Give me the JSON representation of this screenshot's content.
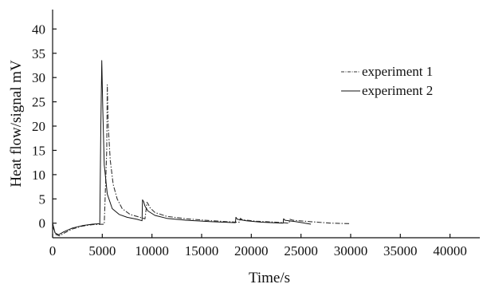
{
  "chart_data": {
    "type": "line",
    "xlabel": "Time/s",
    "ylabel": "Heat flow/signal  mV",
    "xlim": [
      0,
      43000
    ],
    "ylim": [
      -3,
      44
    ],
    "x_ticks": [
      0,
      5000,
      10000,
      15000,
      20000,
      25000,
      30000,
      35000,
      40000
    ],
    "x_tick_labels": [
      "0",
      "5000",
      "10000",
      "15000",
      "20000",
      "25000",
      "30000",
      "35000",
      "40000"
    ],
    "y_ticks": [
      0,
      5,
      10,
      15,
      20,
      25,
      30,
      35,
      40
    ],
    "y_tick_labels": [
      "0",
      "5",
      "10",
      "15",
      "20",
      "25",
      "30",
      "35",
      "40"
    ],
    "grid": false,
    "legend_position": "top-right",
    "series": [
      {
        "name": "experiment  1",
        "style": "dash-dot",
        "color": "#333333",
        "x": [
          0,
          300,
          700,
          1200,
          2000,
          3000,
          4000,
          5200,
          5450,
          5500,
          5600,
          5800,
          6100,
          6500,
          7000,
          7800,
          8800,
          9300,
          9500,
          9600,
          9800,
          10300,
          11500,
          13500,
          16000,
          18500,
          18800,
          18900,
          19100,
          20500,
          22500,
          23700,
          23800,
          23900,
          24200,
          26000,
          28000,
          30000
        ],
        "y": [
          -0.5,
          -2.3,
          -2.6,
          -2.0,
          -1.2,
          -0.6,
          -0.3,
          -0.2,
          15.0,
          28.5,
          20.0,
          13.0,
          8.0,
          5.0,
          3.0,
          1.8,
          1.2,
          0.9,
          4.3,
          4.0,
          3.2,
          2.2,
          1.4,
          0.9,
          0.5,
          0.2,
          0.2,
          1.0,
          0.7,
          0.4,
          0.2,
          0.0,
          0.0,
          0.8,
          0.6,
          0.3,
          0.0,
          -0.1
        ]
      },
      {
        "name": "experiment  2",
        "style": "solid",
        "color": "#111111",
        "x": [
          0,
          250,
          600,
          1100,
          2000,
          3000,
          4000,
          4750,
          4850,
          4950,
          5050,
          5200,
          5500,
          6000,
          6700,
          7500,
          8500,
          9000,
          9050,
          9150,
          9300,
          9600,
          10300,
          11500,
          13500,
          16000,
          18400,
          18450,
          18600,
          19500,
          21000,
          23200,
          23250,
          23400,
          24500,
          26000
        ],
        "y": [
          0,
          -2.0,
          -2.4,
          -1.8,
          -1.0,
          -0.5,
          -0.2,
          -0.1,
          20.0,
          33.5,
          24.0,
          12.0,
          6.0,
          3.0,
          1.8,
          1.2,
          0.8,
          0.5,
          4.8,
          4.5,
          3.5,
          2.5,
          1.6,
          1.0,
          0.6,
          0.3,
          0.1,
          1.2,
          0.8,
          0.5,
          0.2,
          0.0,
          0.9,
          0.6,
          0.3,
          -0.2
        ]
      }
    ]
  }
}
